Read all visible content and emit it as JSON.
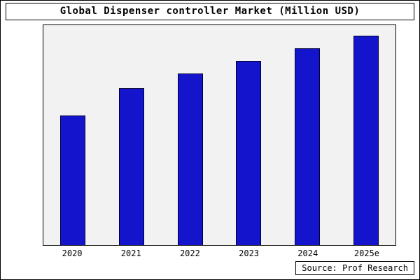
{
  "title": "Global Dispenser controller Market (Million USD)",
  "source": "Source: Prof Research",
  "chart_data": {
    "type": "bar",
    "title": "Global Dispenser controller Market (Million USD)",
    "categories": [
      "2020",
      "2021",
      "2022",
      "2023",
      "2024",
      "2025e"
    ],
    "values": [
      62,
      75,
      82,
      88,
      94,
      100
    ],
    "xlabel": "",
    "ylabel": "",
    "ylim": [
      0,
      105
    ],
    "grid": false,
    "legend": "none",
    "bar_color": "#1414cc",
    "bar_edge_color": "#000033",
    "plot_background": "#f2f2f2",
    "figure_background": "#ffffff"
  }
}
